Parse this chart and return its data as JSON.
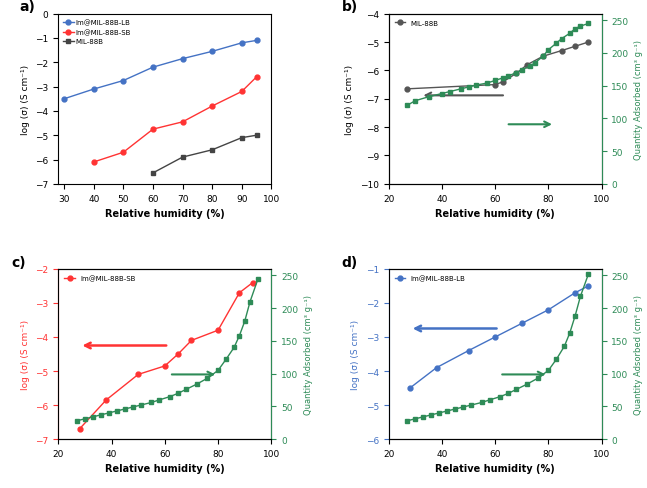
{
  "panel_a": {
    "title": "a)",
    "xlabel": "Relative humidity (%)",
    "ylabel": "log (σ) (S cm⁻¹)",
    "xlim": [
      28,
      100
    ],
    "ylim": [
      -7,
      0
    ],
    "yticks": [
      0,
      -1,
      -2,
      -3,
      -4,
      -5,
      -6,
      -7
    ],
    "xticks": [
      30,
      40,
      50,
      60,
      70,
      80,
      90,
      100
    ],
    "series": [
      {
        "label": "Im@MIL-88B-LB",
        "color": "#4472C4",
        "x": [
          30,
          40,
          50,
          60,
          70,
          80,
          90,
          95
        ],
        "y": [
          -3.5,
          -3.1,
          -2.75,
          -2.2,
          -1.85,
          -1.55,
          -1.2,
          -1.1
        ]
      },
      {
        "label": "Im@MIL-88B-SB",
        "color": "#FF3333",
        "x": [
          40,
          50,
          60,
          70,
          80,
          90,
          95
        ],
        "y": [
          -6.1,
          -5.7,
          -4.75,
          -4.45,
          -3.8,
          -3.2,
          -2.6
        ]
      },
      {
        "label": "MIL-88B",
        "color": "#444444",
        "marker": "s",
        "x": [
          60,
          70,
          80,
          90,
          95
        ],
        "y": [
          -6.55,
          -5.9,
          -5.6,
          -5.1,
          -5.0
        ]
      }
    ]
  },
  "panel_b": {
    "title": "b)",
    "xlabel": "Relative humidity (%)",
    "ylabel_left": "log (σ) (S cm⁻¹)",
    "ylabel_right": "Quantity Adsorbed (cm³ g⁻¹)",
    "xlim": [
      20,
      100
    ],
    "ylim_left": [
      -10,
      -4
    ],
    "ylim_right": [
      0,
      260
    ],
    "yticks_left": [
      -4,
      -5,
      -6,
      -7,
      -8,
      -9,
      -10
    ],
    "yticks_right": [
      0,
      50,
      100,
      150,
      200,
      250
    ],
    "xticks": [
      20,
      40,
      60,
      80,
      100
    ],
    "label": "MIL-88B",
    "conductivity_color": "#555555",
    "adsorption_color": "#2E8B57",
    "conductivity_x": [
      27,
      60,
      63,
      68,
      72,
      78,
      85,
      90,
      95
    ],
    "conductivity_y": [
      -6.65,
      -6.5,
      -6.4,
      -6.1,
      -5.8,
      -5.5,
      -5.3,
      -5.15,
      -5.0
    ],
    "adsorption_x": [
      27,
      30,
      35,
      40,
      43,
      47,
      50,
      53,
      57,
      60,
      63,
      65,
      68,
      70,
      73,
      75,
      78,
      80,
      83,
      85,
      88,
      90,
      92,
      95
    ],
    "adsorption_y": [
      120,
      127,
      133,
      138,
      141,
      145,
      148,
      151,
      154,
      158,
      162,
      165,
      170,
      174,
      180,
      185,
      195,
      205,
      215,
      222,
      230,
      237,
      241,
      245
    ]
  },
  "panel_c": {
    "title": "c)",
    "xlabel": "Relative humidity (%)",
    "ylabel_left": "log (σ) (S cm⁻¹)",
    "ylabel_right": "Quantity Adsorbed (cm³ g⁻¹)",
    "xlim": [
      20,
      100
    ],
    "ylim_left": [
      -7,
      -2
    ],
    "ylim_right": [
      0,
      260
    ],
    "yticks_left": [
      -2,
      -3,
      -4,
      -5,
      -6,
      -7
    ],
    "yticks_right": [
      0,
      50,
      100,
      150,
      200,
      250
    ],
    "xticks": [
      20,
      40,
      60,
      80,
      100
    ],
    "label": "Im@MIL-88B-SB",
    "conductivity_color": "#FF3333",
    "adsorption_color": "#2E8B57",
    "conductivity_x": [
      28,
      38,
      50,
      60,
      65,
      70,
      80,
      88,
      93
    ],
    "conductivity_y": [
      -6.7,
      -5.85,
      -5.1,
      -4.85,
      -4.5,
      -4.1,
      -3.8,
      -2.7,
      -2.4
    ],
    "adsorption_x": [
      27,
      30,
      33,
      36,
      39,
      42,
      45,
      48,
      51,
      55,
      58,
      62,
      65,
      68,
      72,
      76,
      80,
      83,
      86,
      88,
      90,
      92,
      95
    ],
    "adsorption_y": [
      28,
      31,
      34,
      37,
      40,
      43,
      46,
      49,
      52,
      56,
      60,
      65,
      70,
      76,
      84,
      93,
      105,
      122,
      140,
      158,
      180,
      210,
      245
    ]
  },
  "panel_d": {
    "title": "d)",
    "xlabel": "Relative humidity (%)",
    "ylabel_left": "log (σ) (S cm⁻¹)",
    "ylabel_right": "Quantity Adsorbed (cm³ g⁻¹)",
    "xlim": [
      20,
      100
    ],
    "ylim_left": [
      -6,
      -1
    ],
    "ylim_right": [
      0,
      260
    ],
    "yticks_left": [
      -1,
      -2,
      -3,
      -4,
      -5,
      -6
    ],
    "yticks_right": [
      0,
      50,
      100,
      150,
      200,
      250
    ],
    "xticks": [
      20,
      40,
      60,
      80,
      100
    ],
    "label": "Im@MIL-88B-LB",
    "conductivity_color": "#4472C4",
    "adsorption_color": "#2E8B57",
    "conductivity_x": [
      28,
      38,
      50,
      60,
      70,
      80,
      90,
      95
    ],
    "conductivity_y": [
      -4.5,
      -3.9,
      -3.4,
      -3.0,
      -2.6,
      -2.2,
      -1.7,
      -1.5
    ],
    "adsorption_x": [
      27,
      30,
      33,
      36,
      39,
      42,
      45,
      48,
      51,
      55,
      58,
      62,
      65,
      68,
      72,
      76,
      80,
      83,
      86,
      88,
      90,
      92,
      95
    ],
    "adsorption_y": [
      28,
      31,
      34,
      37,
      40,
      43,
      46,
      49,
      52,
      56,
      60,
      65,
      70,
      76,
      84,
      93,
      105,
      122,
      142,
      162,
      188,
      218,
      252
    ]
  }
}
